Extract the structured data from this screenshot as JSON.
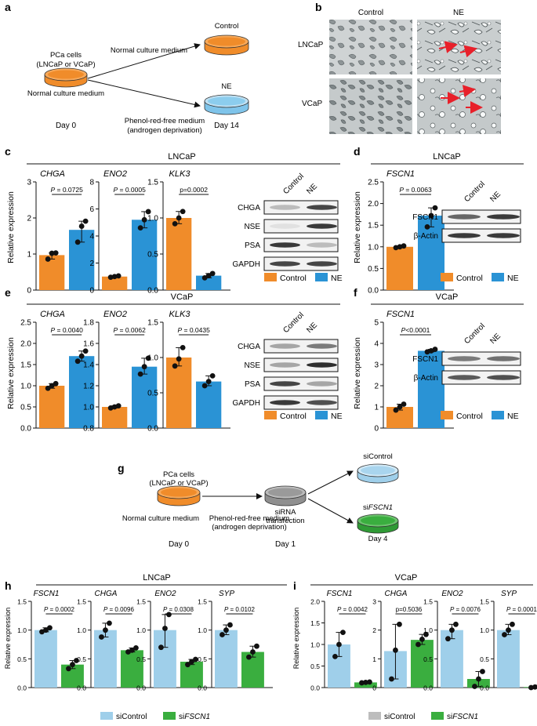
{
  "colors": {
    "control": "#f08c2a",
    "ne": "#2a93d5",
    "sicontrol": "#9fcfea",
    "sifscn1": "#3aae3f",
    "sicontrol_legend_i": "#bdbdbd",
    "dish_gray": "#9a9a9a",
    "dish_light_blue": "#bfe0f2",
    "text": "#111111"
  },
  "panel_letters": [
    "a",
    "b",
    "c",
    "d",
    "e",
    "f",
    "g",
    "h",
    "i"
  ],
  "panel_a": {
    "cells_line1": "PCa cells",
    "cells_line2": "(LNCaP or VCaP)",
    "normal_medium": "Normal culture medium",
    "top_arrow_label": "Normal culture medium",
    "bottom_arrow_line1": "Phenol-red-free medium",
    "bottom_arrow_line2": "(androgen deprivation)",
    "dish_top_label": "Control",
    "dish_bottom_label": "NE",
    "day0": "Day 0",
    "day14": "Day 14"
  },
  "panel_b": {
    "col_headers": [
      "Control",
      "NE"
    ],
    "row_labels": [
      "LNCaP",
      "VCaP"
    ]
  },
  "legend": {
    "control": "Control",
    "ne": "NE",
    "sicontrol": "siControl",
    "sifscn1_prefix": "si",
    "sifscn1_gene": "FSCN1"
  },
  "y_label": "Relative expression",
  "panel_c": {
    "group": "LNCaP"
  },
  "panel_d": {
    "group": "LNCaP"
  },
  "panel_e": {
    "group": "VCaP"
  },
  "panel_f": {
    "group": "VCaP"
  },
  "panel_h": {
    "group": "LNCaP"
  },
  "panel_i": {
    "group": "VCaP"
  },
  "blots": {
    "c": {
      "headers": [
        "Control",
        "NE"
      ],
      "rows": [
        "CHGA",
        "NSE",
        "PSA",
        "GAPDH"
      ]
    },
    "d": {
      "headers": [
        "Control",
        "NE"
      ],
      "rows": [
        "FSCN1",
        "β-Actin"
      ]
    },
    "e": {
      "headers": [
        "Control",
        "NE"
      ],
      "rows": [
        "CHGA",
        "NSE",
        "PSA",
        "GAPDH"
      ]
    },
    "f": {
      "headers": [
        "Control",
        "NE"
      ],
      "rows": [
        "FSCN1",
        "β-Actin"
      ]
    }
  },
  "panel_g": {
    "cells_line1": "PCa cells",
    "cells_line2": "(LNCaP or VCaP)",
    "normal_medium": "Normal culture medium",
    "arrow_line1": "Phenol-red-free medium",
    "arrow_line2": "(androgen deprivation)",
    "sirna_line1": "siRNA",
    "sirna_line2": "transfection",
    "dish_top_label": "siControl",
    "dish_bottom_label_prefix": "si",
    "dish_bottom_label_gene": "FSCN1",
    "day0": "Day 0",
    "day1": "Day 1",
    "day4": "Day 4"
  },
  "chart_data": [
    {
      "panel": "c",
      "gene": "CHGA",
      "type": "bar",
      "categories": [
        "Control",
        "NE"
      ],
      "values": [
        0.97,
        1.67
      ],
      "points": [
        [
          0.86,
          1.02,
          1.03
        ],
        [
          1.33,
          1.77,
          1.91
        ]
      ],
      "ylim": [
        0,
        3
      ],
      "yticks": [
        "0",
        "1",
        "2",
        "3"
      ],
      "pvalue": "P = 0.0725",
      "ylabel": "Relative expression"
    },
    {
      "panel": "c",
      "gene": "ENO2",
      "type": "bar",
      "categories": [
        "Control",
        "NE"
      ],
      "values": [
        1.0,
        5.2
      ],
      "points": [
        [
          0.95,
          1.0,
          1.05
        ],
        [
          4.6,
          5.2,
          5.8
        ]
      ],
      "ylim": [
        0,
        8
      ],
      "yticks": [
        "0",
        "2",
        "4",
        "6",
        "8"
      ],
      "pvalue": "P = 0.0005"
    },
    {
      "panel": "c",
      "gene": "KLK3",
      "type": "bar",
      "categories": [
        "Control",
        "NE"
      ],
      "values": [
        1.0,
        0.2
      ],
      "points": [
        [
          0.92,
          1.0,
          1.09
        ],
        [
          0.17,
          0.2,
          0.23
        ]
      ],
      "ylim": [
        0,
        1.5
      ],
      "yticks": [
        "0.0",
        "0.5",
        "1.0",
        "1.5"
      ],
      "pvalue": "p=0.0002"
    },
    {
      "panel": "d",
      "gene": "FSCN1",
      "type": "bar",
      "categories": [
        "Control",
        "NE"
      ],
      "values": [
        1.0,
        1.72
      ],
      "points": [
        [
          0.98,
          1.0,
          1.02
        ],
        [
          1.46,
          1.72,
          1.9
        ]
      ],
      "ylim": [
        0,
        2.5
      ],
      "yticks": [
        "0.0",
        "0.5",
        "1.0",
        "1.5",
        "2.0",
        "2.5"
      ],
      "pvalue": "P = 0.0063",
      "ylabel": "Relative expression"
    },
    {
      "panel": "e",
      "gene": "CHGA",
      "type": "bar",
      "categories": [
        "Control",
        "NE"
      ],
      "values": [
        1.0,
        1.7
      ],
      "points": [
        [
          0.94,
          1.0,
          1.05
        ],
        [
          1.58,
          1.7,
          1.82
        ]
      ],
      "ylim": [
        0,
        2.5
      ],
      "yticks": [
        "0.0",
        "0.5",
        "1.0",
        "1.5",
        "2.0",
        "2.5"
      ],
      "pvalue": "P = 0.0040",
      "ylabel": "Relative expression"
    },
    {
      "panel": "e",
      "gene": "ENO2",
      "type": "bar",
      "categories": [
        "Control",
        "NE"
      ],
      "values": [
        1.0,
        1.38
      ],
      "points": [
        [
          0.99,
          1.0,
          1.01
        ],
        [
          1.31,
          1.38,
          1.46
        ]
      ],
      "ylim": [
        0.8,
        1.8
      ],
      "yticks": [
        "0.8",
        "1.0",
        "1.2",
        "1.4",
        "1.6",
        "1.8"
      ],
      "pvalue": "P = 0.0062"
    },
    {
      "panel": "e",
      "gene": "KLK3",
      "type": "bar",
      "categories": [
        "Control",
        "NE"
      ],
      "values": [
        1.0,
        0.66
      ],
      "points": [
        [
          0.88,
          0.98,
          1.14
        ],
        [
          0.6,
          0.66,
          0.74
        ]
      ],
      "ylim": [
        0,
        1.5
      ],
      "yticks": [
        "0.0",
        "0.5",
        "1.0",
        "1.5"
      ],
      "pvalue": "P = 0.0435"
    },
    {
      "panel": "f",
      "gene": "FSCN1",
      "type": "bar",
      "categories": [
        "Control",
        "NE"
      ],
      "values": [
        1.0,
        3.65
      ],
      "points": [
        [
          0.85,
          1.0,
          1.13
        ],
        [
          3.6,
          3.65,
          3.72
        ]
      ],
      "ylim": [
        0,
        5
      ],
      "yticks": [
        "0",
        "1",
        "2",
        "3",
        "4",
        "5"
      ],
      "pvalue": "P<0.0001",
      "ylabel": "Relative expression"
    },
    {
      "panel": "h",
      "gene": "FSCN1",
      "type": "bar",
      "categories": [
        "siControl",
        "siFSCN1"
      ],
      "values": [
        1.0,
        0.4
      ],
      "points": [
        [
          0.97,
          1.0,
          1.04
        ],
        [
          0.33,
          0.4,
          0.47
        ]
      ],
      "ylim": [
        0,
        1.5
      ],
      "yticks": [
        "0.0",
        "0.5",
        "1.0",
        "1.5"
      ],
      "pvalue": "P = 0.0002",
      "ylabel": "Relative expression"
    },
    {
      "panel": "h",
      "gene": "CHGA",
      "type": "bar",
      "categories": [
        "siControl",
        "siFSCN1"
      ],
      "values": [
        1.0,
        0.65
      ],
      "points": [
        [
          0.88,
          1.0,
          1.12
        ],
        [
          0.62,
          0.65,
          0.69
        ]
      ],
      "ylim": [
        0,
        1.5
      ],
      "yticks": [
        "0.0",
        "0.5",
        "1.0",
        "1.5"
      ],
      "pvalue": "P = 0.0096"
    },
    {
      "panel": "h",
      "gene": "ENO2",
      "type": "bar",
      "categories": [
        "siControl",
        "siFSCN1"
      ],
      "values": [
        1.0,
        0.45
      ],
      "points": [
        [
          0.7,
          1.03,
          1.27
        ],
        [
          0.4,
          0.45,
          0.49
        ]
      ],
      "ylim": [
        0,
        1.5
      ],
      "yticks": [
        "0.0",
        "0.5",
        "1.0",
        "1.5"
      ],
      "pvalue": "P = 0.0308"
    },
    {
      "panel": "h",
      "gene": "SYP",
      "type": "bar",
      "categories": [
        "siControl",
        "siFSCN1"
      ],
      "values": [
        1.0,
        0.62
      ],
      "points": [
        [
          0.92,
          1.0,
          1.09
        ],
        [
          0.53,
          0.62,
          0.72
        ]
      ],
      "ylim": [
        0,
        1.5
      ],
      "yticks": [
        "0.0",
        "0.5",
        "1.0",
        "1.5"
      ],
      "pvalue": "P = 0.0102"
    },
    {
      "panel": "i",
      "gene": "FSCN1",
      "type": "bar",
      "categories": [
        "siControl",
        "siFSCN1"
      ],
      "values": [
        1.0,
        0.12
      ],
      "points": [
        [
          0.72,
          1.0,
          1.28
        ],
        [
          0.11,
          0.12,
          0.13
        ]
      ],
      "ylim": [
        0,
        2.0
      ],
      "yticks": [
        "0.0",
        "0.5",
        "1.0",
        "1.5",
        "2.0"
      ],
      "pvalue": "P = 0.0042",
      "ylabel": "Relative expression"
    },
    {
      "panel": "i",
      "gene": "CHGA",
      "type": "bar",
      "categories": [
        "siControl",
        "siFSCN1"
      ],
      "values": [
        1.27,
        1.66
      ],
      "points": [
        [
          0.3,
          1.3,
          2.2
        ],
        [
          1.5,
          1.68,
          1.85
        ]
      ],
      "ylim": [
        0,
        3
      ],
      "yticks": [
        "0",
        "1",
        "2",
        "3"
      ],
      "pvalue": "p=0.5036"
    },
    {
      "panel": "i",
      "gene": "ENO2",
      "type": "bar",
      "categories": [
        "siControl",
        "siFSCN1"
      ],
      "values": [
        1.0,
        0.15
      ],
      "points": [
        [
          0.85,
          1.0,
          1.1
        ],
        [
          0.02,
          0.15,
          0.28
        ]
      ],
      "ylim": [
        0,
        1.5
      ],
      "yticks": [
        "0.0",
        "0.5",
        "1.0",
        "1.5"
      ],
      "pvalue": "P = 0.0076"
    },
    {
      "panel": "i",
      "gene": "SYP",
      "type": "bar",
      "categories": [
        "siControl",
        "siFSCN1"
      ],
      "values": [
        1.0,
        0.01
      ],
      "points": [
        [
          0.92,
          1.0,
          1.1
        ],
        [
          0.0,
          0.01,
          0.02
        ]
      ],
      "ylim": [
        0,
        1.5
      ],
      "yticks": [
        "0.0",
        "0.5",
        "1.0",
        "1.5"
      ],
      "pvalue": "P = 0.0001"
    }
  ]
}
